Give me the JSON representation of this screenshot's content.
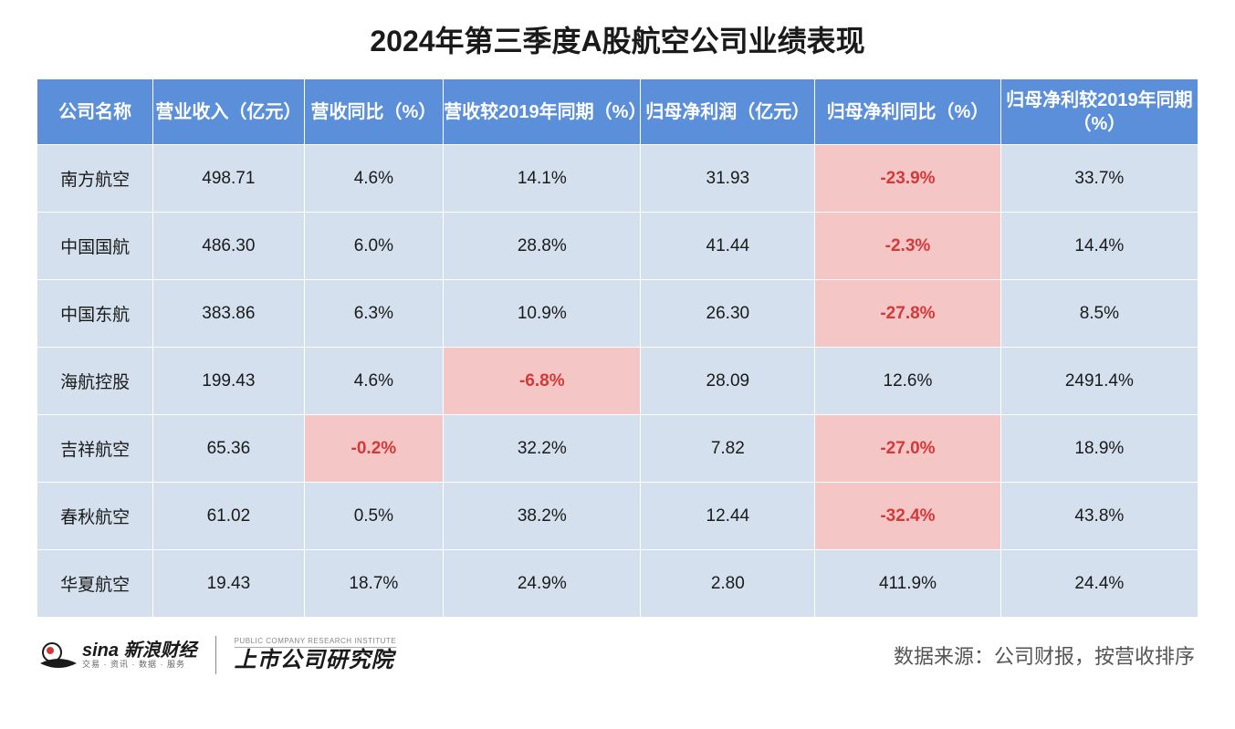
{
  "title": "2024年第三季度A股航空公司业绩表现",
  "table": {
    "headers": [
      "公司名称",
      "营业收入（亿元）",
      "营收同比（%）",
      "营收较2019年同期（%）",
      "归母净利润（亿元）",
      "归母净利同比（%）",
      "归母净利较2019年同期（%）"
    ],
    "rows": [
      {
        "c0": "南方航空",
        "c1": "498.71",
        "c2": "4.6%",
        "c3": "14.1%",
        "c4": "31.93",
        "c5": "-23.9%",
        "c6": "33.7%",
        "neg": {
          "c5": true
        }
      },
      {
        "c0": "中国国航",
        "c1": "486.30",
        "c2": "6.0%",
        "c3": "28.8%",
        "c4": "41.44",
        "c5": "-2.3%",
        "c6": "14.4%",
        "neg": {
          "c5": true
        }
      },
      {
        "c0": "中国东航",
        "c1": "383.86",
        "c2": "6.3%",
        "c3": "10.9%",
        "c4": "26.30",
        "c5": "-27.8%",
        "c6": "8.5%",
        "neg": {
          "c5": true
        }
      },
      {
        "c0": "海航控股",
        "c1": "199.43",
        "c2": "4.6%",
        "c3": "-6.8%",
        "c4": "28.09",
        "c5": "12.6%",
        "c6": "2491.4%",
        "neg": {
          "c3": true
        }
      },
      {
        "c0": "吉祥航空",
        "c1": "65.36",
        "c2": "-0.2%",
        "c3": "32.2%",
        "c4": "7.82",
        "c5": "-27.0%",
        "c6": "18.9%",
        "neg": {
          "c2": true,
          "c5": true
        }
      },
      {
        "c0": "春秋航空",
        "c1": "61.02",
        "c2": "0.5%",
        "c3": "38.2%",
        "c4": "12.44",
        "c5": "-32.4%",
        "c6": "43.8%",
        "neg": {
          "c5": true
        }
      },
      {
        "c0": "华夏航空",
        "c1": "19.43",
        "c2": "18.7%",
        "c3": "24.9%",
        "c4": "2.80",
        "c5": "411.9%",
        "c6": "24.4%",
        "neg": {}
      }
    ]
  },
  "footer": {
    "sina_main": "sina 新浪财经",
    "sina_sub": "交易 · 资讯 · 数据 · 服务",
    "institute_en": "PUBLIC COMPANY RESEARCH INSTITUTE",
    "institute_cn": "上市公司研究院",
    "source": "数据来源：公司财报，按营收排序"
  },
  "style": {
    "header_bg": "#5b8fd9",
    "header_fg": "#ffffff",
    "cell_bg": "#d4e0ed",
    "cell_fg": "#1a1a1a",
    "neg_bg": "#f5c6c6",
    "neg_fg": "#d43939",
    "title_fg": "#1a1a1a",
    "page_bg": "#ffffff"
  }
}
